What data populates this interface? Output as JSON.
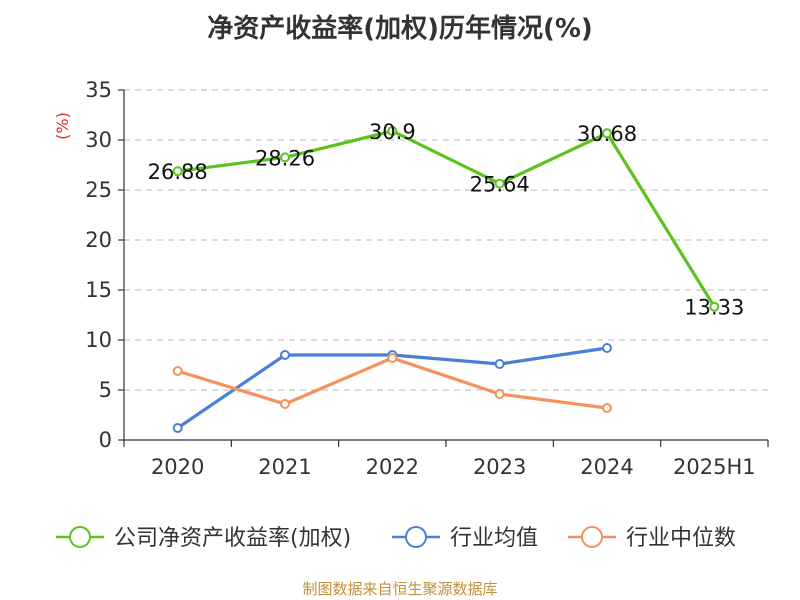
{
  "chart_data": {
    "type": "line",
    "title": "净资产收益率(加权)历年情况(%)",
    "ylabel": "(%)",
    "categories": [
      "2020",
      "2021",
      "2022",
      "2023",
      "2024",
      "2025H1"
    ],
    "ylim": [
      0,
      35
    ],
    "yticks": [
      0,
      5,
      10,
      15,
      20,
      25,
      30,
      35
    ],
    "grid": true,
    "legend_position": "bottom",
    "series": [
      {
        "name": "公司净资产收益率(加权)",
        "color": "#5cc21e",
        "values": [
          26.88,
          28.26,
          30.9,
          25.64,
          30.68,
          13.33
        ],
        "labels": [
          "26.88",
          "28.26",
          "30.9",
          "25.64",
          "30.68",
          "13.33"
        ]
      },
      {
        "name": "行业均值",
        "color": "#4a7fd8",
        "values": [
          1.2,
          8.5,
          8.5,
          7.6,
          9.2,
          null
        ]
      },
      {
        "name": "行业中位数",
        "color": "#f4915c",
        "values": [
          6.9,
          3.6,
          8.2,
          4.6,
          3.2,
          null
        ]
      }
    ]
  },
  "source": "制图数据来自恒生聚源数据库"
}
